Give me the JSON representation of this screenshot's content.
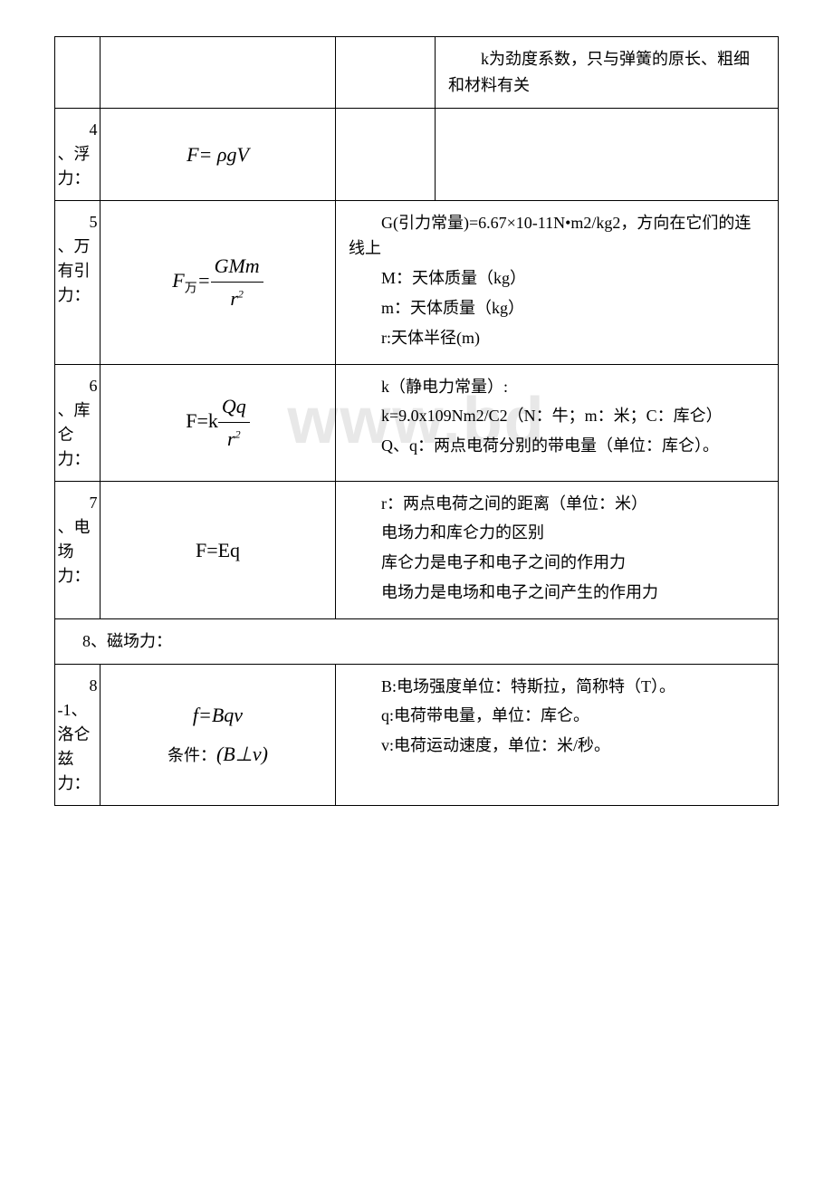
{
  "watermark": "www.bd",
  "table": {
    "border_color": "#000000",
    "background": "#ffffff",
    "rows": [
      {
        "col1": "",
        "col2": "",
        "col3a": "",
        "col3b": "　　k为劲度系数，只与弹簧的原长、粗细和材料有关",
        "split_col3": true
      },
      {
        "col1_num": "4",
        "col1": "、浮力：",
        "col2_formula": "F= ρgV",
        "col3a": "",
        "col3b": "",
        "split_col3": true
      },
      {
        "col1_num": "5",
        "col1": "、万有引力：",
        "col2_is_gravity_formula": true,
        "col3_lines": [
          "　　G(引力常量)=6.67×10-11N•m2/kg2，方向在它们的连线上",
          "　　M：天体质量（kg）",
          "　　m：天体质量（kg）",
          "　　r:天体半径(m)"
        ]
      },
      {
        "col1_num": "6",
        "col1": "、库仑力：",
        "col2_is_coulomb_formula": true,
        "col3_lines": [
          "　　k（静电力常量）:",
          "　　k=9.0x109Nm2/C2（N：牛；m：米；C：库仑）",
          "　　Q、q：两点电荷分别的带电量（单位：库仑）。"
        ]
      },
      {
        "col1_num": "7",
        "col1": "、电场力：",
        "col2_formula": "F=Eq",
        "col3_lines": [
          "　　r：两点电荷之间的距离（单位：米）",
          "　　电场力和库仑力的区别",
          "　　库仑力是电子和电子之间的作用力",
          "　　电场力是电场和电子之间产生的作用力"
        ]
      },
      {
        "section_header": "8、磁场力："
      },
      {
        "col1_num": "8",
        "col1": "-1、洛仑兹力：",
        "col2_is_lorentz_formula": true,
        "col2_condition_label": "条件：",
        "col2_condition_formula": "(B⊥v)",
        "col3_lines": [
          "　　B:电场强度单位：特斯拉，简称特（T）。",
          "　　q:电荷带电量，单位：库仑。",
          "　　v:电荷运动速度，单位：米/秒。"
        ]
      }
    ]
  },
  "formulas": {
    "gravity": {
      "left": "F",
      "sub": "万",
      "eq": "=",
      "num": "GMm",
      "den_base": "r",
      "den_sup": "2"
    },
    "coulomb": {
      "prefix": "F=k",
      "num": "Qq",
      "den_base": "r",
      "den_sup": "2"
    },
    "lorentz": {
      "text": "f=Bqv"
    }
  }
}
